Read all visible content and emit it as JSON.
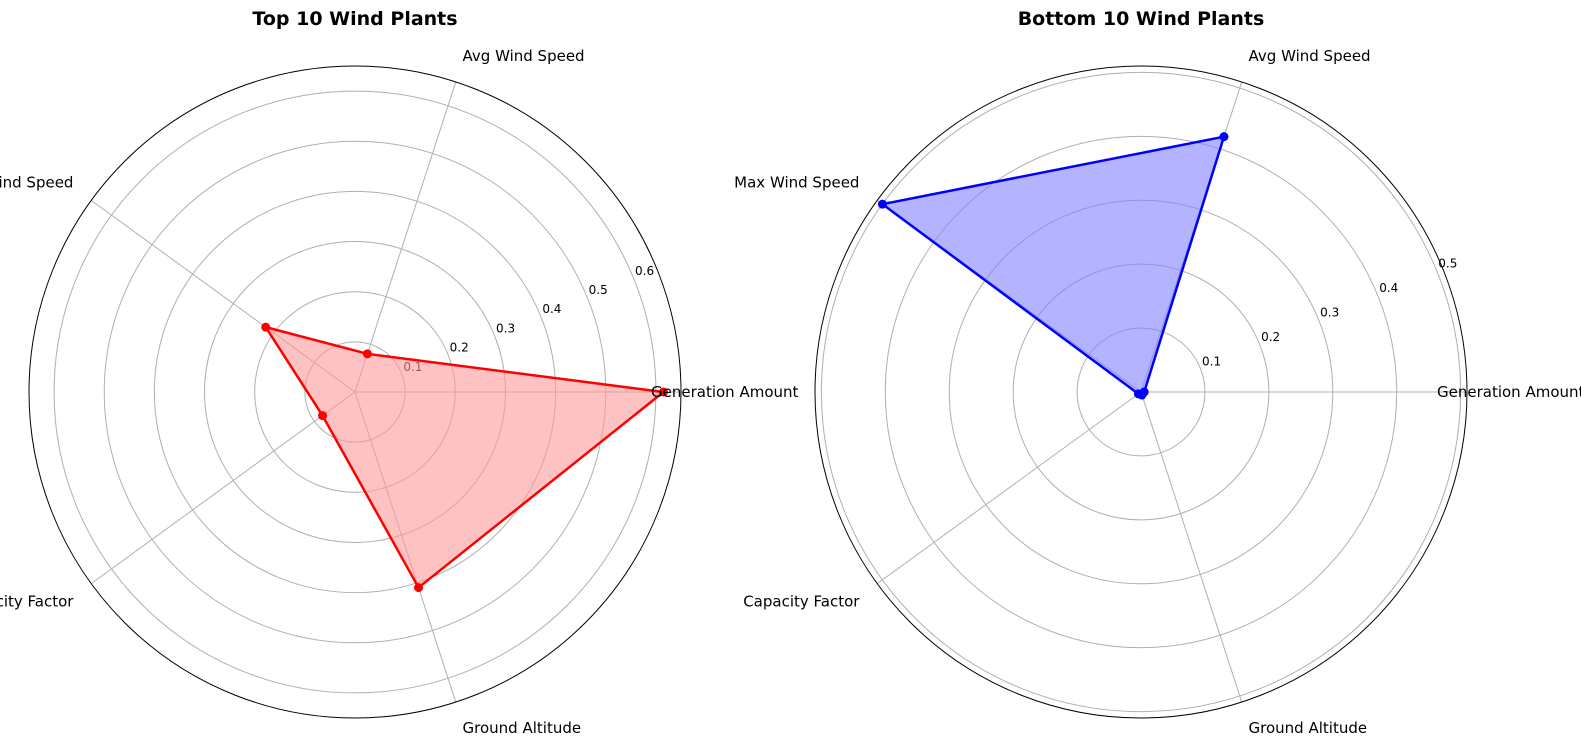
{
  "chart_data": [
    {
      "type": "radar",
      "title": "Top 10 Wind Plants",
      "categories": [
        "Generation Amount",
        "Avg Wind Speed",
        "Max Wind Speed",
        "Capacity Factor",
        "Ground Altitude"
      ],
      "values": [
        0.615,
        0.08,
        0.22,
        0.08,
        0.41
      ],
      "rlim": [
        0,
        0.65
      ],
      "rticks": [
        0.1,
        0.2,
        0.3,
        0.4,
        0.5,
        0.6
      ],
      "color": "#ff0000",
      "fill_color": "#ff9999",
      "grid": true
    },
    {
      "type": "radar",
      "title": "Bottom 10 Wind Plants",
      "categories": [
        "Generation Amount",
        "Avg Wind Speed",
        "Max Wind Speed",
        "Capacity Factor",
        "Ground Altitude"
      ],
      "values": [
        0.005,
        0.42,
        0.5,
        0.005,
        0.005
      ],
      "rlim": [
        0,
        0.51
      ],
      "rticks": [
        0.1,
        0.2,
        0.3,
        0.4,
        0.5
      ],
      "color": "#0000ff",
      "fill_color": "#8080ff",
      "grid": true
    }
  ]
}
